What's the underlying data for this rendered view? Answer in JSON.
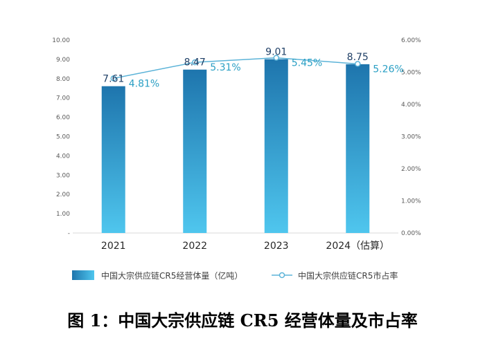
{
  "chart_data": {
    "type": "bar",
    "title": "",
    "categories": [
      "2021",
      "2022",
      "2023",
      "2024（估算）"
    ],
    "series": [
      {
        "name": "中国大宗供应链CR5经营体量（亿吨）",
        "type": "bar",
        "axis": "left",
        "values": [
          7.61,
          8.47,
          9.01,
          8.75
        ],
        "value_labels": [
          "7.61",
          "8.47",
          "9.01",
          "8.75"
        ],
        "color_top": "#1e75ad",
        "color_bottom": "#4fc6ee"
      },
      {
        "name": "中国大宗供应链CR5市占率",
        "type": "line",
        "axis": "right",
        "values": [
          4.81,
          5.31,
          5.45,
          5.26
        ],
        "value_labels": [
          "4.81%",
          "5.31%",
          "5.45%",
          "5.26%"
        ],
        "color": "#5bb3d8"
      }
    ],
    "y_left": {
      "lim": [
        0,
        10
      ],
      "ticks": [
        "-",
        "1.00",
        "2.00",
        "3.00",
        "4.00",
        "5.00",
        "6.00",
        "7.00",
        "8.00",
        "9.00",
        "10.00"
      ]
    },
    "y_right": {
      "lim": [
        0,
        6
      ],
      "ticks": [
        "0.00%",
        "1.00%",
        "2.00%",
        "3.00%",
        "4.00%",
        "5.00%",
        "6.00%"
      ]
    },
    "grid": false,
    "legend_position": "bottom"
  },
  "caption": "图 1：中国大宗供应链 CR5 经营体量及市占率"
}
